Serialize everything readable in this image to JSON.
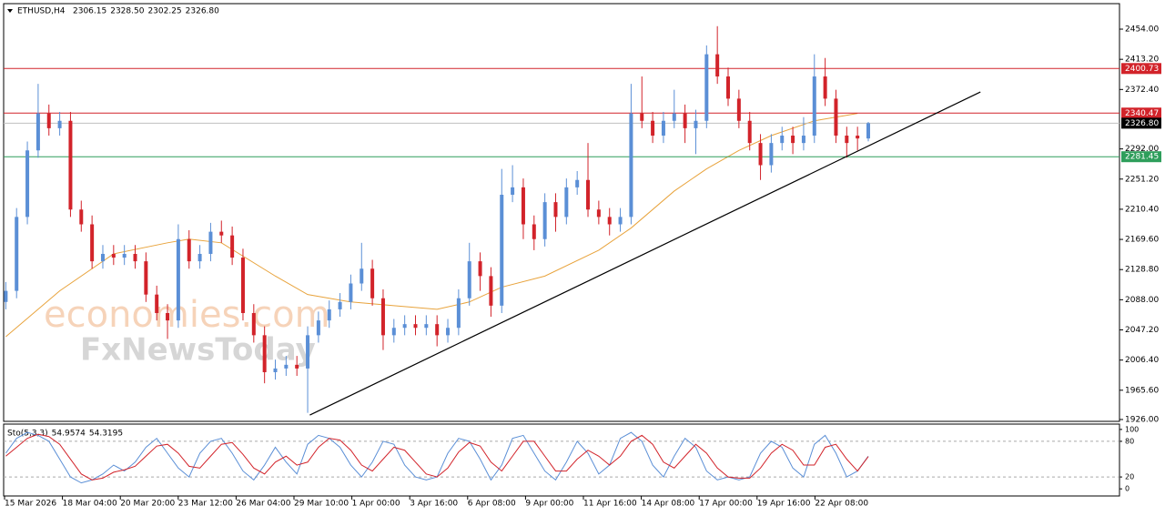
{
  "chart_data": {
    "type": "candlestick",
    "symbol": "ETHUSD,H4",
    "header_values": [
      "2306.15",
      "2328.50",
      "2302.25",
      "2326.80"
    ],
    "watermark": [
      "economies.com",
      "FxNewsToday"
    ],
    "up_color": "#5b8fd6",
    "down_color": "#d2232a",
    "xlim": [
      -0.2,
      103.3
    ],
    "ylim": [
      1923.5,
      2488.5
    ],
    "yticks": [
      {
        "value": 2454,
        "label": "2454.00"
      },
      {
        "value": 2413.2,
        "label": "2413.20"
      },
      {
        "value": 2372.4,
        "label": "2372.40"
      },
      {
        "value": 2292,
        "label": "2292.00"
      },
      {
        "value": 2251.2,
        "label": "2251.20"
      },
      {
        "value": 2210.4,
        "label": "2210.40"
      },
      {
        "value": 2169.6,
        "label": "2169.60"
      },
      {
        "value": 2128.8,
        "label": "2128.80"
      },
      {
        "value": 2088,
        "label": "2088.00"
      },
      {
        "value": 2047.2,
        "label": "2047.20"
      },
      {
        "value": 2006.4,
        "label": "2006.40"
      },
      {
        "value": 1965.6,
        "label": "1965.60"
      },
      {
        "value": 1926,
        "label": "1926.00"
      }
    ],
    "time_labels": [
      "15 Mar 2026",
      "18 Mar 04:00",
      "20 Mar 20:00",
      "23 Mar 12:00",
      "26 Mar 04:00",
      "29 Mar 10:00",
      "1 Apr 00:00",
      "3 Apr 16:00",
      "6 Apr 08:00",
      "9 Apr 00:00",
      "11 Apr 16:00",
      "14 Apr 08:00",
      "17 Apr 00:00",
      "19 Apr 16:00",
      "22 Apr 08:00"
    ],
    "open": [
      2085,
      2100,
      2200,
      2290,
      2340,
      2320,
      2330,
      2210,
      2190,
      2140,
      2150,
      2145,
      2150,
      2140,
      2095,
      2070,
      2060,
      2170,
      2140,
      2150,
      2180,
      2175,
      2145,
      2070,
      2040,
      1990,
      1995,
      2000,
      1995,
      2040,
      2060,
      2075,
      2085,
      2110,
      2130,
      2090,
      2040,
      2050,
      2055,
      2050,
      2055,
      2040,
      2050,
      2090,
      2140,
      2120,
      2080,
      2230,
      2240,
      2190,
      2170,
      2220,
      2200,
      2240,
      2250,
      2210,
      2200,
      2190,
      2200,
      2340,
      2330,
      2310,
      2330,
      2340,
      2320,
      2330,
      2420,
      2390,
      2360,
      2330,
      2300,
      2270,
      2300,
      2310,
      2300,
      2310,
      2390,
      2360,
      2310,
      2310,
      2306.15
    ],
    "high": [
      2112,
      2212,
      2302,
      2380,
      2352,
      2342,
      2342,
      2222,
      2202,
      2162,
      2162,
      2162,
      2162,
      2152,
      2107,
      2082,
      2190,
      2182,
      2162,
      2192,
      2195,
      2187,
      2157,
      2082,
      2052,
      2007,
      2012,
      2012,
      2052,
      2072,
      2087,
      2097,
      2122,
      2165,
      2142,
      2102,
      2062,
      2067,
      2067,
      2067,
      2067,
      2062,
      2102,
      2165,
      2152,
      2132,
      2265,
      2270,
      2252,
      2202,
      2232,
      2232,
      2252,
      2262,
      2300,
      2222,
      2212,
      2212,
      2380,
      2390,
      2342,
      2342,
      2372,
      2352,
      2345,
      2432,
      2458,
      2402,
      2372,
      2342,
      2312,
      2312,
      2322,
      2322,
      2335,
      2420,
      2415,
      2372,
      2322,
      2322,
      2328.5
    ],
    "low": [
      2075,
      2090,
      2190,
      2280,
      2310,
      2310,
      2200,
      2180,
      2130,
      2130,
      2135,
      2135,
      2130,
      2085,
      2060,
      2035,
      2050,
      2130,
      2130,
      2140,
      2165,
      2135,
      2060,
      2030,
      1975,
      1980,
      1985,
      1985,
      1935,
      2030,
      2050,
      2065,
      2075,
      2100,
      2080,
      2020,
      2030,
      2040,
      2040,
      2040,
      2025,
      2030,
      2040,
      2080,
      2100,
      2065,
      2070,
      2220,
      2170,
      2155,
      2160,
      2180,
      2190,
      2230,
      2200,
      2190,
      2175,
      2180,
      2190,
      2320,
      2300,
      2300,
      2320,
      2300,
      2285,
      2320,
      2380,
      2350,
      2320,
      2290,
      2250,
      2260,
      2290,
      2285,
      2290,
      2300,
      2350,
      2300,
      2280,
      2290,
      2302.25
    ],
    "close": [
      2100,
      2200,
      2290,
      2340,
      2320,
      2330,
      2210,
      2190,
      2140,
      2150,
      2145,
      2150,
      2140,
      2095,
      2070,
      2060,
      2170,
      2140,
      2150,
      2180,
      2175,
      2145,
      2070,
      2040,
      1990,
      1995,
      2000,
      1995,
      2040,
      2060,
      2075,
      2085,
      2110,
      2130,
      2090,
      2040,
      2050,
      2055,
      2050,
      2055,
      2040,
      2050,
      2090,
      2140,
      2120,
      2080,
      2230,
      2240,
      2190,
      2170,
      2220,
      2200,
      2240,
      2250,
      2210,
      2200,
      2190,
      2200,
      2340,
      2330,
      2310,
      2330,
      2340,
      2320,
      2330,
      2420,
      2390,
      2360,
      2330,
      2300,
      2270,
      2300,
      2310,
      2300,
      2310,
      2390,
      2360,
      2310,
      2300,
      2306.15,
      2326.8
    ],
    "moving_average": {
      "color": "#e8a33c",
      "x": [
        0,
        5,
        10,
        15,
        17,
        20,
        25,
        28,
        32,
        36,
        40,
        43,
        46,
        50,
        55,
        58,
        62,
        65,
        68,
        71,
        75,
        79
      ],
      "values": [
        2038,
        2100,
        2150,
        2165,
        2170,
        2165,
        2120,
        2095,
        2085,
        2080,
        2075,
        2085,
        2105,
        2120,
        2155,
        2185,
        2235,
        2265,
        2290,
        2310,
        2330,
        2340
      ]
    },
    "trendline": {
      "color": "#000000",
      "x": [
        28.2,
        90.4
      ],
      "values": [
        1932,
        2369
      ]
    },
    "levels": [
      {
        "value": 2400.73,
        "color": "#d2232a"
      },
      {
        "value": 2340.47,
        "color": "#d2232a"
      },
      {
        "value": 2326.8,
        "label": "2326.80",
        "color": "#000000"
      },
      {
        "value": 2281.45,
        "color": "#2e9e5b"
      }
    ],
    "oscillator": {
      "title": "Sto(5,3,3)",
      "value_labels": [
        "54.9574",
        "54.3195"
      ],
      "ylim": [
        -12,
        109
      ],
      "yticks": [
        100,
        80,
        20,
        0
      ],
      "levels": [
        80,
        20
      ],
      "series": [
        {
          "color": "#5b8fd6",
          "values": [
            60,
            85,
            95,
            90,
            80,
            50,
            20,
            10,
            15,
            25,
            40,
            30,
            45,
            70,
            85,
            60,
            35,
            20,
            60,
            80,
            85,
            60,
            30,
            15,
            40,
            70,
            45,
            25,
            75,
            90,
            85,
            70,
            40,
            20,
            45,
            80,
            75,
            40,
            20,
            15,
            20,
            60,
            85,
            80,
            50,
            15,
            40,
            85,
            90,
            60,
            30,
            15,
            45,
            80,
            60,
            25,
            40,
            85,
            95,
            80,
            40,
            20,
            55,
            85,
            70,
            30,
            15,
            20,
            15,
            20,
            60,
            80,
            70,
            35,
            20,
            75,
            90,
            60,
            20,
            30,
            54.9574
          ]
        },
        {
          "color": "#d2232a",
          "values": [
            55,
            70,
            85,
            92,
            88,
            75,
            50,
            25,
            15,
            18,
            28,
            32,
            38,
            55,
            72,
            75,
            60,
            38,
            35,
            55,
            75,
            78,
            58,
            35,
            25,
            45,
            55,
            40,
            45,
            70,
            85,
            82,
            65,
            40,
            30,
            50,
            70,
            65,
            45,
            25,
            20,
            35,
            62,
            78,
            72,
            45,
            30,
            55,
            80,
            80,
            55,
            30,
            30,
            50,
            65,
            55,
            40,
            55,
            80,
            90,
            75,
            45,
            35,
            55,
            75,
            60,
            35,
            20,
            18,
            18,
            35,
            60,
            75,
            65,
            40,
            40,
            70,
            75,
            50,
            30,
            54.3195
          ]
        }
      ]
    }
  }
}
